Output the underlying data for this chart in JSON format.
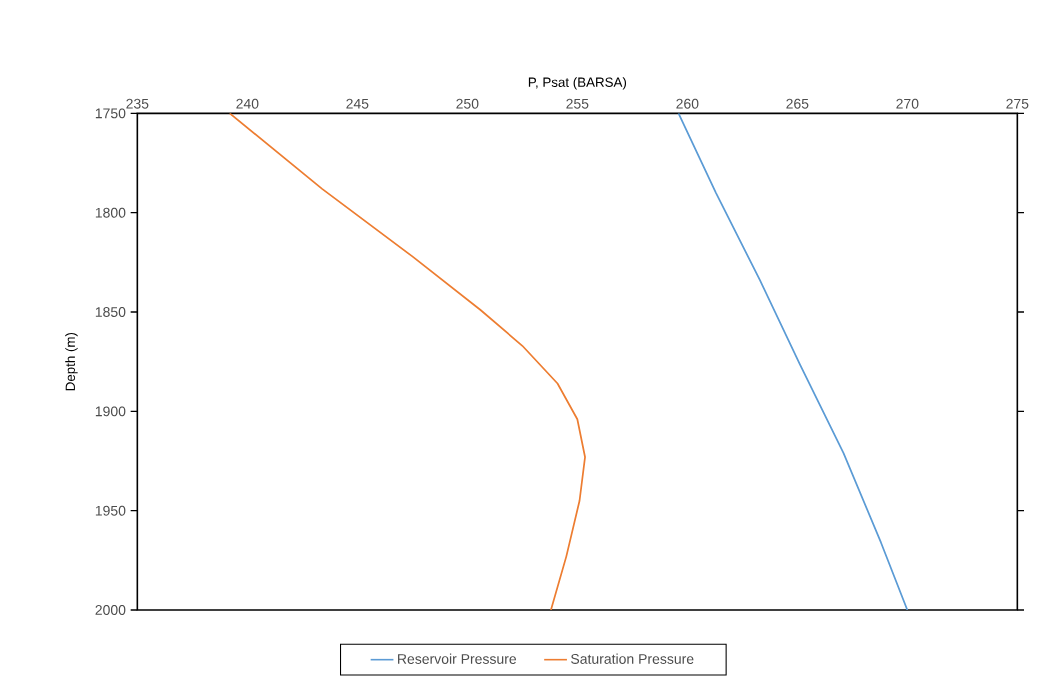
{
  "chart_data": {
    "type": "line",
    "xlabel": "P, Psat (BARSA)",
    "ylabel": "Depth (m)",
    "xlim": [
      235,
      275
    ],
    "xticks": [
      235,
      240,
      245,
      250,
      255,
      260,
      265,
      270,
      275
    ],
    "ylim": [
      2000,
      1750
    ],
    "yticks": [
      1750,
      1800,
      1850,
      1900,
      1950,
      2000
    ],
    "grid": false,
    "legend": "bottom",
    "series": [
      {
        "name": "Reservoir Pressure",
        "color": "#5b9bd5",
        "x": [
          259.6,
          261.3,
          263.3,
          265.1,
          267.1,
          268.8,
          270.0
        ],
        "values": [
          1750,
          1790,
          1834,
          1876,
          1921,
          1966,
          2000
        ]
      },
      {
        "name": "Saturation Pressure",
        "color": "#ed7d31",
        "x": [
          239.2,
          243.4,
          247.5,
          250.6,
          252.5,
          254.1,
          255.0,
          255.35,
          255.1,
          254.5,
          253.8
        ],
        "values": [
          1750,
          1788,
          1822,
          1849,
          1867,
          1886,
          1904,
          1923,
          1945,
          1973,
          2000
        ]
      }
    ]
  }
}
